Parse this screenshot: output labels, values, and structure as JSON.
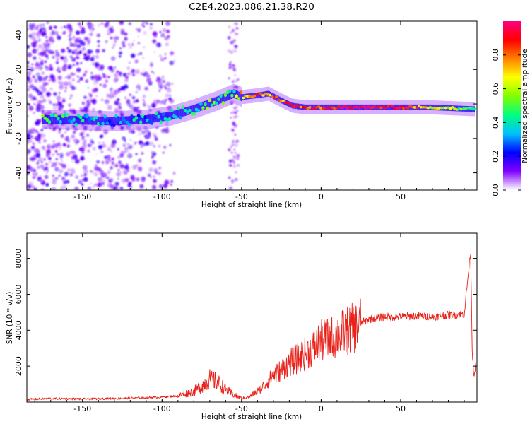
{
  "title": "C2E4.2023.086.21.38.R20",
  "chart_data": [
    {
      "type": "heatmap",
      "xlabel": "Height of straight line (km)",
      "ylabel": "Frequency (Hz)",
      "xlim": [
        -185,
        98
      ],
      "ylim": [
        -50,
        48
      ],
      "x_ticks": [
        -150,
        -100,
        -50,
        0,
        50
      ],
      "y_ticks": [
        -40,
        -20,
        0,
        20,
        40
      ],
      "colorbar": {
        "label": "Normalized spectral amplitude",
        "range": [
          0,
          1
        ],
        "ticks": [
          0.0,
          0.2,
          0.4,
          0.6,
          0.8
        ],
        "colors": [
          "#ffffff",
          "#8000ff",
          "#0000ff",
          "#00c0ff",
          "#00ff80",
          "#80ff00",
          "#ffff00",
          "#ff8000",
          "#ff0000",
          "#ff0080"
        ]
      },
      "ridge": [
        {
          "x": -170,
          "f": -9,
          "a": 0.45
        },
        {
          "x": -130,
          "f": -10,
          "a": 0.3
        },
        {
          "x": -110,
          "f": -9,
          "a": 0.35
        },
        {
          "x": -95,
          "f": -7,
          "a": 0.4
        },
        {
          "x": -80,
          "f": -3,
          "a": 0.45
        },
        {
          "x": -65,
          "f": 2,
          "a": 0.5
        },
        {
          "x": -55,
          "f": 6,
          "a": 0.5
        },
        {
          "x": -50,
          "f": 4,
          "a": 0.7
        },
        {
          "x": -40,
          "f": 5,
          "a": 0.8
        },
        {
          "x": -33,
          "f": 6,
          "a": 0.75
        },
        {
          "x": -25,
          "f": 2,
          "a": 0.8
        },
        {
          "x": -18,
          "f": -1,
          "a": 0.85
        },
        {
          "x": -10,
          "f": -2,
          "a": 0.8
        },
        {
          "x": 0,
          "f": -2,
          "a": 0.85
        },
        {
          "x": 20,
          "f": -2,
          "a": 0.95
        },
        {
          "x": 50,
          "f": -2,
          "a": 0.9
        },
        {
          "x": 70,
          "f": -2,
          "a": 0.6
        },
        {
          "x": 95,
          "f": -3,
          "a": 0.5
        }
      ]
    },
    {
      "type": "line",
      "xlabel": "Height of straight line (km)",
      "ylabel": "SNR (10 * v/v)",
      "xlim": [
        -185,
        98
      ],
      "ylim": [
        0,
        9400
      ],
      "x_ticks": [
        -150,
        -100,
        -50,
        0,
        50
      ],
      "y_ticks": [
        2000,
        4000,
        6000,
        8000
      ],
      "color": "#e8211a",
      "series": [
        {
          "x": [
            -185,
            -170,
            -150,
            -130,
            -110,
            -100,
            -90,
            -80,
            -75,
            -70,
            -65,
            -60,
            -55,
            -50,
            -45,
            -40,
            -35,
            -30,
            -25,
            -20,
            -15,
            -10,
            -5,
            0,
            5,
            10,
            15,
            20,
            25,
            30,
            35,
            40,
            50,
            60,
            70,
            80,
            90,
            94,
            95,
            96,
            97
          ],
          "y": [
            150,
            200,
            170,
            200,
            250,
            280,
            350,
            600,
            900,
            1300,
            1100,
            700,
            400,
            200,
            300,
            600,
            1000,
            1500,
            1800,
            2200,
            2400,
            2700,
            3000,
            3400,
            3500,
            3700,
            3900,
            4100,
            4400,
            4600,
            4700,
            4750,
            4750,
            4800,
            4750,
            4850,
            4900,
            8400,
            3000,
            1500,
            2000
          ]
        }
      ]
    }
  ]
}
